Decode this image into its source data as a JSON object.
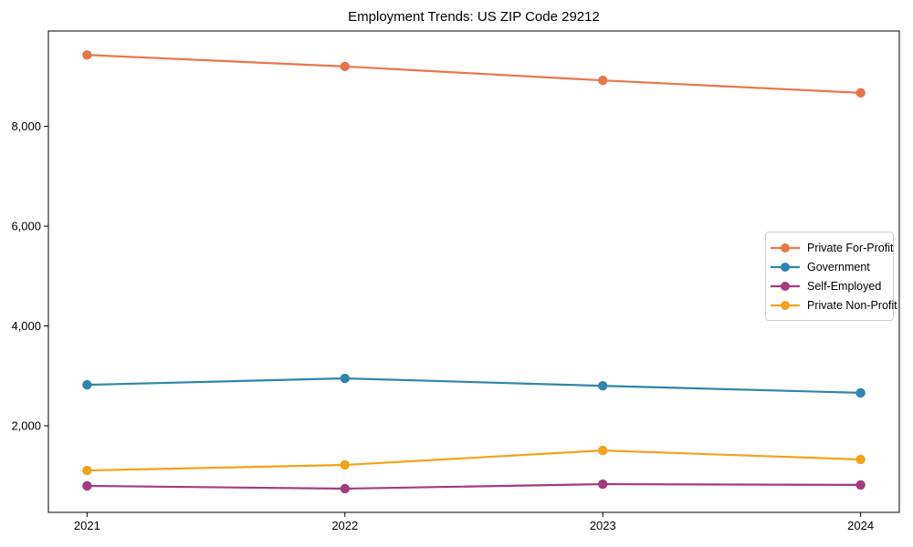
{
  "title": "Employment Trends: US ZIP Code 29212",
  "axes": {
    "x_tick_labels": [
      "2021",
      "2022",
      "2023",
      "2024"
    ],
    "y_tick_labels": [
      "2,000",
      "4,000",
      "6,000",
      "8,000"
    ]
  },
  "colors": {
    "private_for_profit": "#E8764B",
    "government": "#2E86AB",
    "self_employed": "#A33B80",
    "private_non_profit": "#F3A21B",
    "spine": "#000000",
    "legend_border": "#cccccc"
  },
  "chart_data": {
    "type": "line",
    "title": "Employment Trends: US ZIP Code 29212",
    "xlabel": "",
    "ylabel": "",
    "x": [
      2021,
      2022,
      2023,
      2024
    ],
    "series": [
      {
        "name": "Private For-Profit",
        "color": "#E8764B",
        "values": [
          9430,
          9200,
          8920,
          8670
        ]
      },
      {
        "name": "Government",
        "color": "#2E86AB",
        "values": [
          2820,
          2950,
          2800,
          2660
        ]
      },
      {
        "name": "Self-Employed",
        "color": "#A33B80",
        "values": [
          795,
          740,
          830,
          815
        ]
      },
      {
        "name": "Private Non-Profit",
        "color": "#F3A21B",
        "values": [
          1105,
          1215,
          1505,
          1325
        ]
      }
    ],
    "ylim": [
      265,
      9910
    ],
    "yticks": [
      2000,
      4000,
      6000,
      8000
    ],
    "ytick_labels": [
      "2,000",
      "4,000",
      "6,000",
      "8,000"
    ],
    "xtick_labels": [
      "2021",
      "2022",
      "2023",
      "2024"
    ],
    "grid": false,
    "marker": "o",
    "legend_position": "center right"
  }
}
